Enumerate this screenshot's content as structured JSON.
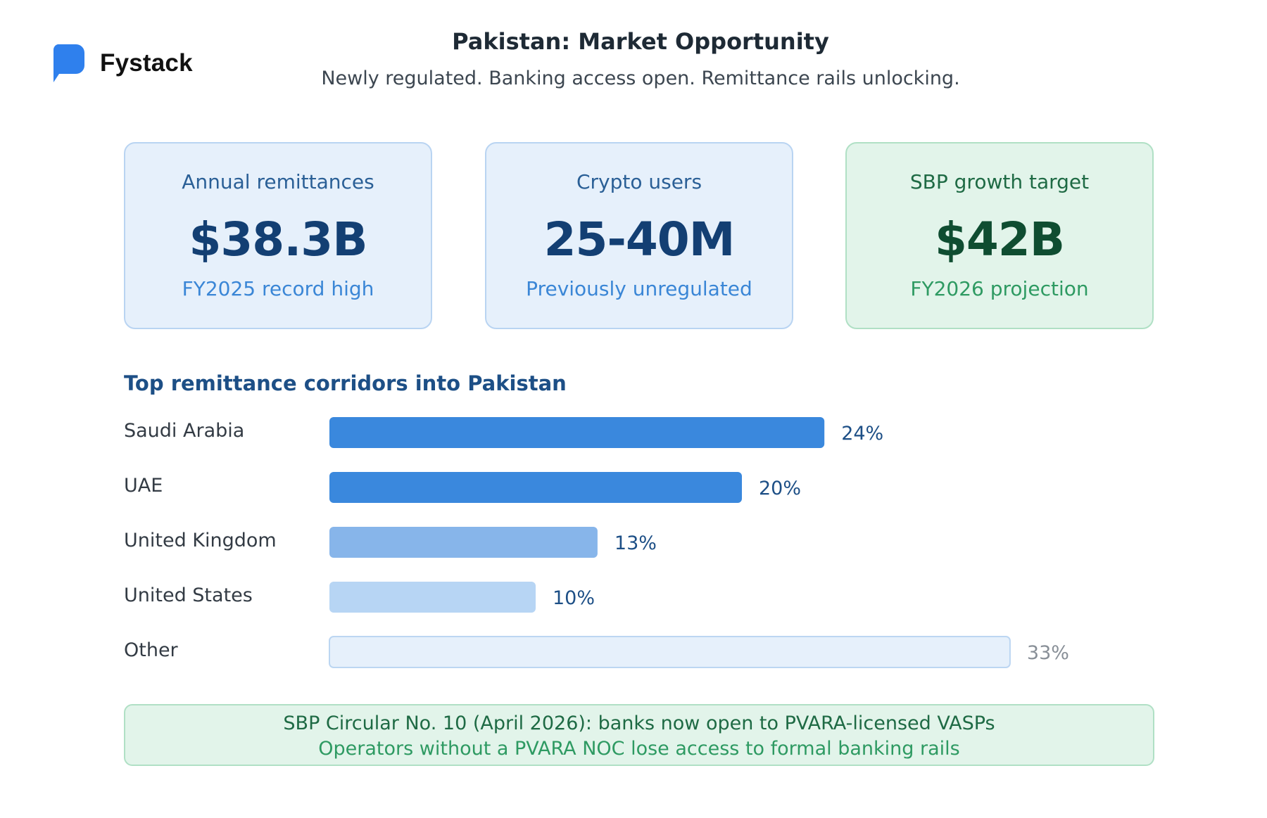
{
  "brand": {
    "name": "Fystack",
    "logo_icon": "chat-bubble-icon",
    "logo_color": "#2f80ed"
  },
  "header": {
    "title": "Pakistan: Market Opportunity",
    "subtitle": "Newly regulated. Banking access open. Remittance rails unlocking."
  },
  "stats": [
    {
      "label": "Annual remittances",
      "value": "$38.3B",
      "note": "FY2025 record high",
      "theme": "blue"
    },
    {
      "label": "Crypto users",
      "value": "25-40M",
      "note": "Previously unregulated",
      "theme": "blue"
    },
    {
      "label": "SBP growth target",
      "value": "$42B",
      "note": "FY2026 projection",
      "theme": "green"
    }
  ],
  "corridors": {
    "title": "Top remittance corridors into Pakistan"
  },
  "chart_data": {
    "type": "bar",
    "orientation": "horizontal",
    "categories": [
      "Saudi Arabia",
      "UAE",
      "United Kingdom",
      "United States",
      "Other"
    ],
    "values": [
      24,
      20,
      13,
      10,
      33
    ],
    "value_labels": [
      "24%",
      "20%",
      "13%",
      "10%",
      "33%"
    ],
    "unit": "%",
    "bar_colors": [
      "#3a88dd",
      "#3a88dd",
      "#87b5ea",
      "#b7d5f4",
      "#e6f0fb"
    ],
    "label_colors": [
      "#1d4f86",
      "#1d4f86",
      "#1d4f86",
      "#1d4f86",
      "#888f97"
    ],
    "grid": false,
    "legend": "none"
  },
  "notice": {
    "line1": "SBP Circular No. 10 (April 2026): banks now open to PVARA-licensed VASPs",
    "line2": "Operators without a PVARA NOC lose access to formal banking rails"
  }
}
